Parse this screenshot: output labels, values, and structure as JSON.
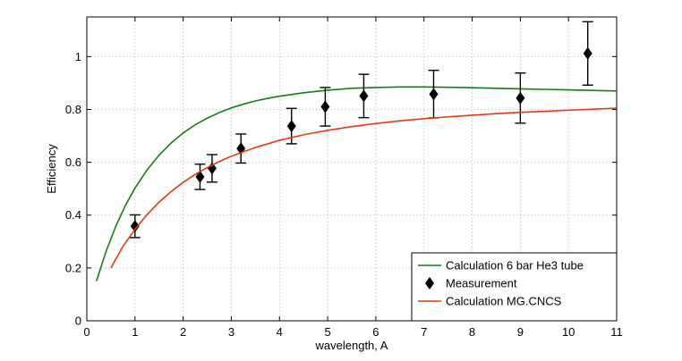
{
  "chart_data": {
    "type": "line",
    "title": "",
    "xlabel": "wavelength, A",
    "ylabel": "Efficiency",
    "xlim": [
      0,
      11
    ],
    "ylim": [
      0,
      1.15
    ],
    "grid": true,
    "legend_position": "bottom-right",
    "xticks": [
      "0",
      "1",
      "2",
      "3",
      "4",
      "5",
      "6",
      "7",
      "8",
      "9",
      "10",
      "11"
    ],
    "yticks": [
      "0",
      "0.2",
      "0.4",
      "0.6",
      "0.8",
      "1"
    ],
    "series": [
      {
        "name": "Calculation 6 bar He3 tube",
        "kind": "line",
        "color": "#1a7a1a",
        "x": [
          0.2,
          0.4,
          0.6,
          0.8,
          1.0,
          1.25,
          1.5,
          1.75,
          2.0,
          2.25,
          2.5,
          2.75,
          3.0,
          3.25,
          3.5,
          3.75,
          4.0,
          4.5,
          5.0,
          5.5,
          6.0,
          6.5,
          7.0,
          7.5,
          8.0,
          8.5,
          9.0,
          9.5,
          10.0,
          10.5,
          11.0
        ],
        "y": [
          0.15,
          0.263,
          0.357,
          0.436,
          0.502,
          0.571,
          0.627,
          0.673,
          0.711,
          0.742,
          0.767,
          0.788,
          0.806,
          0.82,
          0.832,
          0.842,
          0.85,
          0.863,
          0.873,
          0.88,
          0.883,
          0.885,
          0.885,
          0.884,
          0.882,
          0.88,
          0.878,
          0.876,
          0.874,
          0.872,
          0.87
        ]
      },
      {
        "name": "Measurement",
        "kind": "errorbar",
        "color": "#000000",
        "x": [
          1.0,
          2.35,
          2.6,
          3.2,
          4.25,
          4.95,
          5.75,
          7.2,
          9.0,
          10.4
        ],
        "y": [
          0.358,
          0.545,
          0.577,
          0.652,
          0.737,
          0.81,
          0.851,
          0.858,
          0.843,
          1.012
        ],
        "yerr": [
          0.043,
          0.048,
          0.052,
          0.055,
          0.067,
          0.073,
          0.082,
          0.09,
          0.095,
          0.12
        ]
      },
      {
        "name": "Calculation MG.CNCS",
        "kind": "line",
        "color": "#e03c18",
        "x": [
          0.5,
          0.75,
          1.0,
          1.25,
          1.5,
          1.75,
          2.0,
          2.25,
          2.5,
          2.75,
          3.0,
          3.5,
          4.0,
          4.5,
          5.0,
          5.5,
          6.0,
          6.5,
          7.0,
          7.5,
          8.0,
          8.5,
          9.0,
          9.5,
          10.0,
          10.5,
          11.0
        ],
        "y": [
          0.2,
          0.282,
          0.346,
          0.402,
          0.449,
          0.489,
          0.524,
          0.554,
          0.58,
          0.603,
          0.623,
          0.656,
          0.683,
          0.704,
          0.721,
          0.735,
          0.747,
          0.757,
          0.765,
          0.772,
          0.778,
          0.784,
          0.789,
          0.793,
          0.797,
          0.801,
          0.805
        ]
      }
    ]
  }
}
